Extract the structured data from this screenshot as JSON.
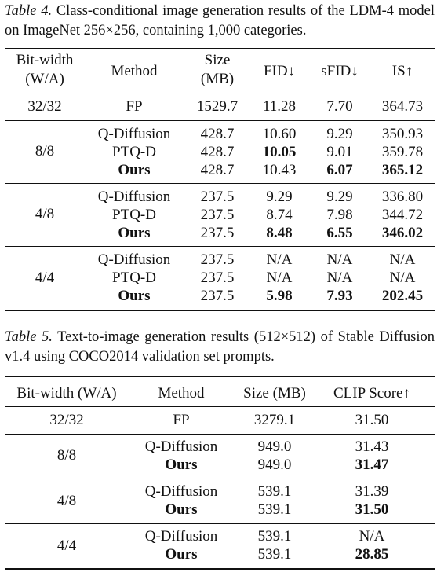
{
  "table4": {
    "caption_label": "Table 4.",
    "caption_text": " Class-conditional image generation results of the LDM-4 model on ImageNet 256×256, containing 1,000 categories.",
    "headers": {
      "bitwidth_l1": "Bit-width",
      "bitwidth_l2": "(W/A)",
      "method": "Method",
      "size_l1": "Size",
      "size_l2": "(MB)",
      "fid": "FID↓",
      "sfid": "sFID↓",
      "is": "IS↑"
    },
    "groups": [
      {
        "bitwidth": "32/32",
        "rows": [
          {
            "method": "FP",
            "size": "1529.7",
            "fid": "11.28",
            "sfid": "7.70",
            "is": "364.73"
          }
        ]
      },
      {
        "bitwidth": "8/8",
        "rows": [
          {
            "method": "Q-Diffusion",
            "size": "428.7",
            "fid": "10.60",
            "sfid": "9.29",
            "is": "350.93"
          },
          {
            "method": "PTQ-D",
            "size": "428.7",
            "fid": "10.05",
            "sfid": "9.01",
            "is": "359.78"
          },
          {
            "method": "Ours",
            "size": "428.7",
            "fid": "10.43",
            "sfid": "6.07",
            "is": "365.12"
          }
        ]
      },
      {
        "bitwidth": "4/8",
        "rows": [
          {
            "method": "Q-Diffusion",
            "size": "237.5",
            "fid": "9.29",
            "sfid": "9.29",
            "is": "336.80"
          },
          {
            "method": "PTQ-D",
            "size": "237.5",
            "fid": "8.74",
            "sfid": "7.98",
            "is": "344.72"
          },
          {
            "method": "Ours",
            "size": "237.5",
            "fid": "8.48",
            "sfid": "6.55",
            "is": "346.02"
          }
        ]
      },
      {
        "bitwidth": "4/4",
        "rows": [
          {
            "method": "Q-Diffusion",
            "size": "237.5",
            "fid": "N/A",
            "sfid": "N/A",
            "is": "N/A"
          },
          {
            "method": "PTQ-D",
            "size": "237.5",
            "fid": "N/A",
            "sfid": "N/A",
            "is": "N/A"
          },
          {
            "method": "Ours",
            "size": "237.5",
            "fid": "5.98",
            "sfid": "7.93",
            "is": "202.45"
          }
        ]
      }
    ]
  },
  "table5": {
    "caption_label": "Table 5.",
    "caption_text": " Text-to-image generation results (512×512) of Stable Diffusion v1.4 using COCO2014 validation set prompts.",
    "headers": {
      "bitwidth": "Bit-width (W/A)",
      "method": "Method",
      "size": "Size (MB)",
      "clip": "CLIP Score↑"
    },
    "groups": [
      {
        "bitwidth": "32/32",
        "rows": [
          {
            "method": "FP",
            "size": "3279.1",
            "clip": "31.50"
          }
        ]
      },
      {
        "bitwidth": "8/8",
        "rows": [
          {
            "method": "Q-Diffusion",
            "size": "949.0",
            "clip": "31.43"
          },
          {
            "method": "Ours",
            "size": "949.0",
            "clip": "31.47"
          }
        ]
      },
      {
        "bitwidth": "4/8",
        "rows": [
          {
            "method": "Q-Diffusion",
            "size": "539.1",
            "clip": "31.39"
          },
          {
            "method": "Ours",
            "size": "539.1",
            "clip": "31.50"
          }
        ]
      },
      {
        "bitwidth": "4/4",
        "rows": [
          {
            "method": "Q-Diffusion",
            "size": "539.1",
            "clip": "N/A"
          },
          {
            "method": "Ours",
            "size": "539.1",
            "clip": "28.85"
          }
        ]
      }
    ]
  }
}
